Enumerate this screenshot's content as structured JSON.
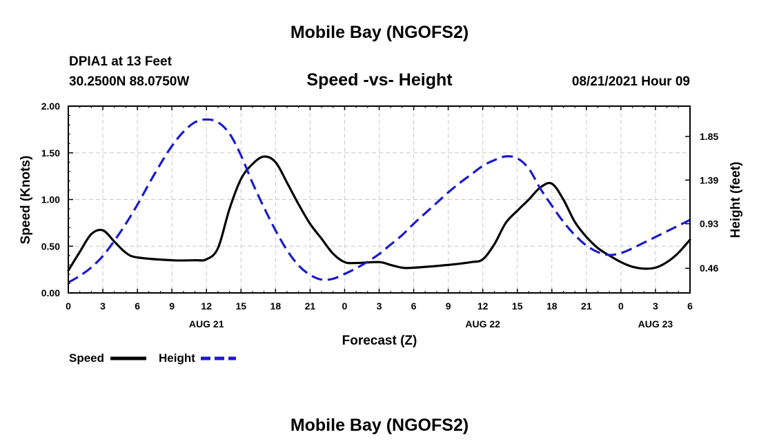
{
  "header": {
    "title_top": "Mobile Bay (NGOFS2)",
    "station": "DPIA1 at 13 Feet",
    "coords": "30.2500N  88.0750W",
    "subtitle": "Speed -vs- Height",
    "datetime": "08/21/2021 Hour 09",
    "title_bottom": "Mobile Bay (NGOFS2)"
  },
  "chart_data": {
    "type": "line",
    "title": "Speed -vs- Height",
    "xlabel": "Forecast (Z)",
    "ylabel_left": "Speed (Knots)",
    "ylabel_right": "Height (feet)",
    "x_range_hours": [
      0,
      54
    ],
    "x_ticks": [
      {
        "h": 0,
        "label": "0"
      },
      {
        "h": 3,
        "label": "3"
      },
      {
        "h": 6,
        "label": "6"
      },
      {
        "h": 9,
        "label": "9"
      },
      {
        "h": 12,
        "label": "12"
      },
      {
        "h": 15,
        "label": "15"
      },
      {
        "h": 18,
        "label": "18"
      },
      {
        "h": 21,
        "label": "21"
      },
      {
        "h": 24,
        "label": "0"
      },
      {
        "h": 27,
        "label": "3"
      },
      {
        "h": 30,
        "label": "6"
      },
      {
        "h": 33,
        "label": "9"
      },
      {
        "h": 36,
        "label": "12"
      },
      {
        "h": 39,
        "label": "15"
      },
      {
        "h": 42,
        "label": "18"
      },
      {
        "h": 45,
        "label": "21"
      },
      {
        "h": 48,
        "label": "0"
      },
      {
        "h": 51,
        "label": "3"
      },
      {
        "h": 54,
        "label": "6"
      }
    ],
    "date_labels": [
      {
        "h": 12,
        "label": "AUG 21"
      },
      {
        "h": 36,
        "label": "AUG 22"
      },
      {
        "h": 51,
        "label": "AUG 23"
      }
    ],
    "y_left": {
      "min": 0,
      "max": 2.0,
      "ticks": [
        "0.00",
        "0.50",
        "1.00",
        "1.50",
        "2.00"
      ]
    },
    "y_right": {
      "min": 0.2,
      "max": 2.17,
      "ticks": [
        "0.46",
        "0.93",
        "1.39",
        "1.85"
      ]
    },
    "grid": true,
    "legend_position": "bottom-left",
    "series": [
      {
        "name": "Speed",
        "color": "#000000",
        "axis": "left",
        "dash": "solid",
        "points": [
          [
            0,
            0.24
          ],
          [
            1,
            0.44
          ],
          [
            2,
            0.63
          ],
          [
            3,
            0.67
          ],
          [
            4,
            0.55
          ],
          [
            5,
            0.43
          ],
          [
            6,
            0.38
          ],
          [
            9,
            0.35
          ],
          [
            11,
            0.35
          ],
          [
            12,
            0.36
          ],
          [
            13,
            0.48
          ],
          [
            14,
            0.9
          ],
          [
            15,
            1.22
          ],
          [
            16,
            1.38
          ],
          [
            17,
            1.46
          ],
          [
            18,
            1.4
          ],
          [
            19,
            1.18
          ],
          [
            20,
            0.95
          ],
          [
            21,
            0.74
          ],
          [
            22,
            0.58
          ],
          [
            23,
            0.42
          ],
          [
            24,
            0.33
          ],
          [
            25,
            0.32
          ],
          [
            27,
            0.33
          ],
          [
            28,
            0.3
          ],
          [
            29,
            0.27
          ],
          [
            30,
            0.27
          ],
          [
            33,
            0.3
          ],
          [
            35,
            0.33
          ],
          [
            36,
            0.36
          ],
          [
            37,
            0.52
          ],
          [
            38,
            0.75
          ],
          [
            39,
            0.88
          ],
          [
            40,
            1.0
          ],
          [
            41,
            1.13
          ],
          [
            42,
            1.17
          ],
          [
            43,
            1.0
          ],
          [
            44,
            0.76
          ],
          [
            45,
            0.6
          ],
          [
            46,
            0.48
          ],
          [
            47,
            0.4
          ],
          [
            48,
            0.33
          ],
          [
            49,
            0.28
          ],
          [
            50,
            0.26
          ],
          [
            51,
            0.27
          ],
          [
            52,
            0.33
          ],
          [
            53,
            0.43
          ],
          [
            54,
            0.57
          ]
        ]
      },
      {
        "name": "Height",
        "color": "#1a1acc",
        "axis": "right",
        "dash": "dashed",
        "points": [
          [
            0,
            0.31
          ],
          [
            1,
            0.38
          ],
          [
            2,
            0.47
          ],
          [
            3,
            0.59
          ],
          [
            4,
            0.75
          ],
          [
            5,
            0.93
          ],
          [
            6,
            1.13
          ],
          [
            7,
            1.35
          ],
          [
            8,
            1.56
          ],
          [
            9,
            1.75
          ],
          [
            10,
            1.9
          ],
          [
            11,
            2.0
          ],
          [
            12,
            2.03
          ],
          [
            13,
            2.0
          ],
          [
            14,
            1.88
          ],
          [
            15,
            1.65
          ],
          [
            16,
            1.36
          ],
          [
            17,
            1.1
          ],
          [
            18,
            0.86
          ],
          [
            19,
            0.65
          ],
          [
            20,
            0.49
          ],
          [
            21,
            0.39
          ],
          [
            22,
            0.34
          ],
          [
            23,
            0.35
          ],
          [
            24,
            0.4
          ],
          [
            25,
            0.46
          ],
          [
            26,
            0.53
          ],
          [
            27,
            0.61
          ],
          [
            28,
            0.71
          ],
          [
            29,
            0.81
          ],
          [
            30,
            0.93
          ],
          [
            31,
            1.04
          ],
          [
            32,
            1.15
          ],
          [
            33,
            1.26
          ],
          [
            34,
            1.36
          ],
          [
            35,
            1.45
          ],
          [
            36,
            1.54
          ],
          [
            37,
            1.6
          ],
          [
            38,
            1.64
          ],
          [
            39,
            1.62
          ],
          [
            40,
            1.51
          ],
          [
            41,
            1.3
          ],
          [
            42,
            1.12
          ],
          [
            43,
            0.95
          ],
          [
            44,
            0.81
          ],
          [
            45,
            0.7
          ],
          [
            46,
            0.63
          ],
          [
            47,
            0.6
          ],
          [
            48,
            0.62
          ],
          [
            49,
            0.67
          ],
          [
            50,
            0.73
          ],
          [
            51,
            0.79
          ],
          [
            52,
            0.85
          ],
          [
            53,
            0.91
          ],
          [
            54,
            0.97
          ]
        ]
      }
    ]
  }
}
